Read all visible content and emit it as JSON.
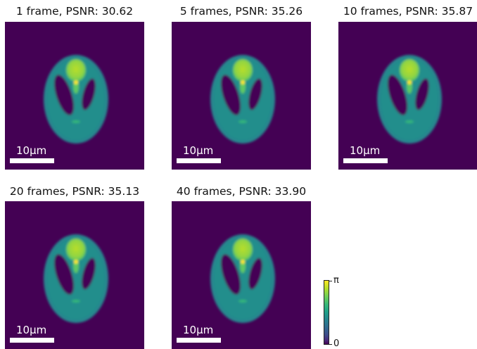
{
  "panels": [
    {
      "title": "1 frame, PSNR: 30.62",
      "scalebar": "10μm"
    },
    {
      "title": "5 frames, PSNR: 35.26",
      "scalebar": "10μm"
    },
    {
      "title": "10 frames, PSNR: 35.87",
      "scalebar": "10μm"
    },
    {
      "title": "20 frames, PSNR: 35.13",
      "scalebar": "10μm"
    },
    {
      "title": "40 frames, PSNR: 33.90",
      "scalebar": "10μm"
    }
  ],
  "colorbar": {
    "max_label": "π",
    "min_label": "0"
  },
  "colors": {
    "background": "#440154",
    "ellipse": "#23898e",
    "dark_lobe": "#440154",
    "bright_head": "#9fda3a",
    "bright_spot": "#fde725"
  }
}
